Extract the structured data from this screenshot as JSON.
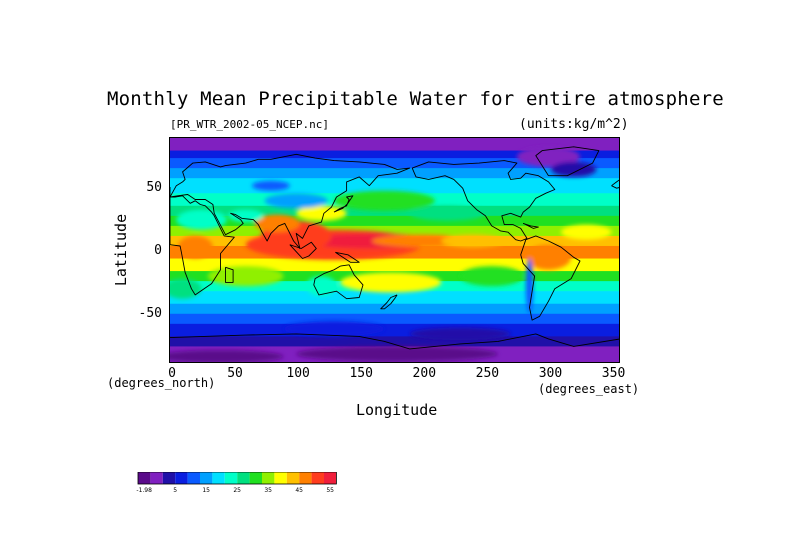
{
  "chart_data": {
    "type": "heatmap",
    "title": "Monthly Mean Precipitable Water for entire atmosphere",
    "subtitle_left": "[PR_WTR_2002-05_NCEP.nc]",
    "subtitle_right": "(units:kg/m^2)",
    "xlabel": "Longitude",
    "ylabel": "Latitude",
    "x_unit": "(degrees_east)",
    "y_unit": "(degrees_north)",
    "xlim": [
      0,
      357.5
    ],
    "ylim": [
      -90,
      90
    ],
    "x_ticks": [
      "0",
      "50",
      "100",
      "150",
      "200",
      "250",
      "300",
      "350"
    ],
    "y_ticks": [
      "50",
      "0",
      "-50"
    ],
    "colorbar": {
      "tick_labels": [
        "-1.98",
        "5",
        "15",
        "25",
        "35",
        "45",
        "55"
      ],
      "colors": [
        "#5a0a8a",
        "#8020c0",
        "#2010a8",
        "#0a1ee0",
        "#0a5aff",
        "#00a0ff",
        "#00e0ff",
        "#00ffc8",
        "#00e080",
        "#20e020",
        "#90f000",
        "#ffff00",
        "#ffc000",
        "#ff8000",
        "#ff3c1e",
        "#f01e3c"
      ]
    },
    "grid": false,
    "legend": "bottom-left colorbar"
  }
}
